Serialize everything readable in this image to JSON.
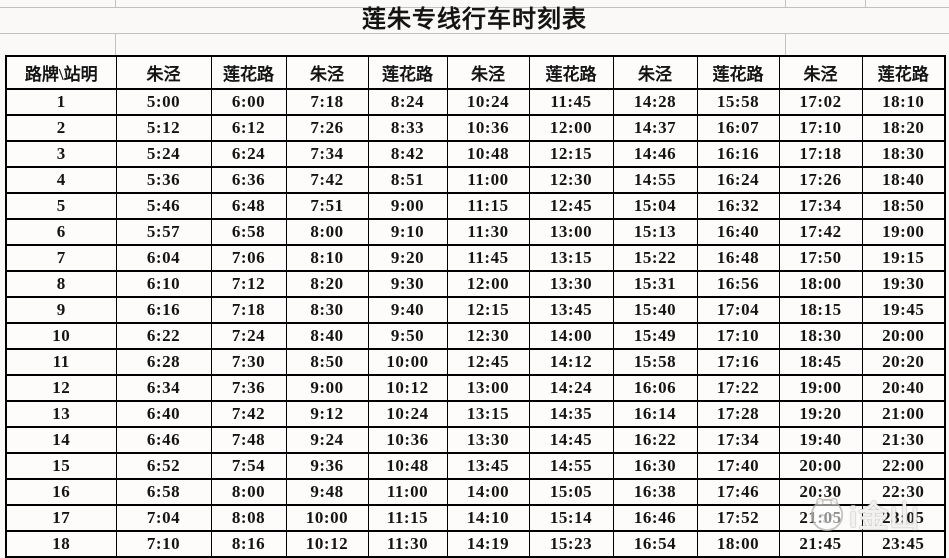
{
  "title": "莲朱专线行车时刻表",
  "chart_data": {
    "type": "table",
    "title": "莲朱专线行车时刻表",
    "columns": [
      "路牌\\站明",
      "朱泾",
      "莲花路",
      "朱泾",
      "莲花路",
      "朱泾",
      "莲花路",
      "朱泾",
      "莲花路",
      "朱泾",
      "莲花路"
    ],
    "rows": [
      [
        "1",
        "5:00",
        "6:00",
        "7:18",
        "8:24",
        "10:24",
        "11:45",
        "14:28",
        "15:58",
        "17:02",
        "18:10"
      ],
      [
        "2",
        "5:12",
        "6:12",
        "7:26",
        "8:33",
        "10:36",
        "12:00",
        "14:37",
        "16:07",
        "17:10",
        "18:20"
      ],
      [
        "3",
        "5:24",
        "6:24",
        "7:34",
        "8:42",
        "10:48",
        "12:15",
        "14:46",
        "16:16",
        "17:18",
        "18:30"
      ],
      [
        "4",
        "5:36",
        "6:36",
        "7:42",
        "8:51",
        "11:00",
        "12:30",
        "14:55",
        "16:24",
        "17:26",
        "18:40"
      ],
      [
        "5",
        "5:46",
        "6:48",
        "7:51",
        "9:00",
        "11:15",
        "12:45",
        "15:04",
        "16:32",
        "17:34",
        "18:50"
      ],
      [
        "6",
        "5:57",
        "6:58",
        "8:00",
        "9:10",
        "11:30",
        "13:00",
        "15:13",
        "16:40",
        "17:42",
        "19:00"
      ],
      [
        "7",
        "6:04",
        "7:06",
        "8:10",
        "9:20",
        "11:45",
        "13:15",
        "15:22",
        "16:48",
        "17:50",
        "19:15"
      ],
      [
        "8",
        "6:10",
        "7:12",
        "8:20",
        "9:30",
        "12:00",
        "13:30",
        "15:31",
        "16:56",
        "18:00",
        "19:30"
      ],
      [
        "9",
        "6:16",
        "7:18",
        "8:30",
        "9:40",
        "12:15",
        "13:45",
        "15:40",
        "17:04",
        "18:15",
        "19:45"
      ],
      [
        "10",
        "6:22",
        "7:24",
        "8:40",
        "9:50",
        "12:30",
        "14:00",
        "15:49",
        "17:10",
        "18:30",
        "20:00"
      ],
      [
        "11",
        "6:28",
        "7:30",
        "8:50",
        "10:00",
        "12:45",
        "14:12",
        "15:58",
        "17:16",
        "18:45",
        "20:20"
      ],
      [
        "12",
        "6:34",
        "7:36",
        "9:00",
        "10:12",
        "13:00",
        "14:24",
        "16:06",
        "17:22",
        "19:00",
        "20:40"
      ],
      [
        "13",
        "6:40",
        "7:42",
        "9:12",
        "10:24",
        "13:15",
        "14:35",
        "16:14",
        "17:28",
        "19:20",
        "21:00"
      ],
      [
        "14",
        "6:46",
        "7:48",
        "9:24",
        "10:36",
        "13:30",
        "14:45",
        "16:22",
        "17:34",
        "19:40",
        "21:30"
      ],
      [
        "15",
        "6:52",
        "7:54",
        "9:36",
        "10:48",
        "13:45",
        "14:55",
        "16:30",
        "17:40",
        "20:00",
        "22:00"
      ],
      [
        "16",
        "6:58",
        "8:00",
        "9:48",
        "11:00",
        "14:00",
        "15:05",
        "16:38",
        "17:46",
        "20:30",
        "22:30"
      ],
      [
        "17",
        "7:04",
        "8:08",
        "10:00",
        "11:15",
        "14:10",
        "15:14",
        "16:46",
        "17:52",
        "21:05",
        "23:05"
      ],
      [
        "18",
        "7:10",
        "8:16",
        "10:12",
        "11:30",
        "14:19",
        "15:23",
        "16:54",
        "18:00",
        "21:45",
        "23:45"
      ]
    ]
  },
  "watermark": {
    "text": "i金山",
    "logo": "mascot-logo"
  }
}
